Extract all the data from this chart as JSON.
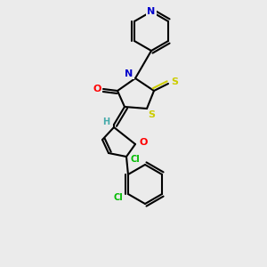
{
  "background_color": "#ebebeb",
  "bond_color": "black",
  "atom_colors": {
    "N": "#0000cc",
    "O": "#ff0000",
    "S": "#cccc00",
    "Cl": "#00bb00",
    "H": "#44aaaa",
    "C": "black"
  },
  "figsize": [
    3.0,
    3.0
  ],
  "dpi": 100
}
